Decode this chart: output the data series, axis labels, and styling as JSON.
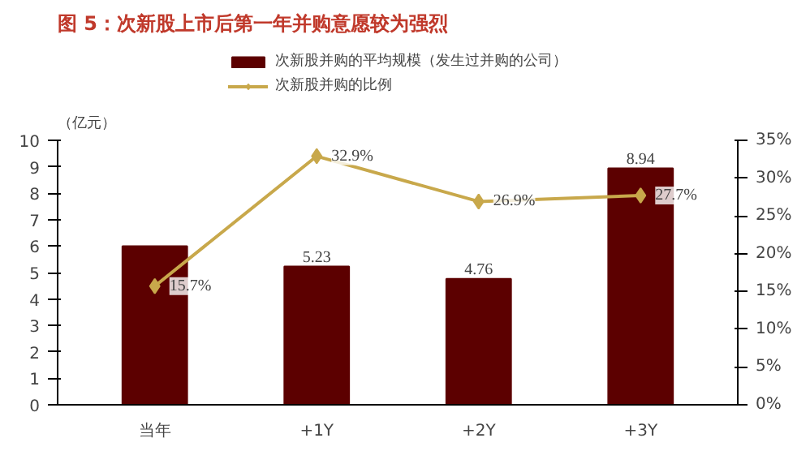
{
  "chart_data": {
    "type": "bar",
    "title": "图 5：次新股上市后第一年并购意愿较为强烈",
    "ylabel": "（亿元）",
    "categories": [
      "当年",
      "+1Y",
      "+2Y",
      "+3Y"
    ],
    "series": [
      {
        "name": "次新股并购的平均规模（发生过并购的公司）",
        "color": "#5c0000",
        "values": [
          6.0,
          5.23,
          4.76,
          8.94
        ],
        "value_labels": [
          null,
          "5.23",
          "4.76",
          "8.94"
        ]
      },
      {
        "name": "次新股并购的比例",
        "type": "line",
        "axis": "y2",
        "color": "#c8a84b",
        "marker": "diamond",
        "values": [
          15.7,
          32.9,
          26.9,
          27.7
        ],
        "value_labels": [
          "15.7%",
          "32.9%",
          "26.9%",
          "27.7%"
        ]
      }
    ],
    "ylim": [
      0,
      10
    ],
    "yticks": [
      0,
      1,
      2,
      3,
      4,
      5,
      6,
      7,
      8,
      9,
      10
    ],
    "y2lim": [
      0,
      35
    ],
    "y2ticks": [
      {
        "value": 0,
        "label": "0%"
      },
      {
        "value": 5,
        "label": "5%"
      },
      {
        "value": 10,
        "label": "10%"
      },
      {
        "value": 15,
        "label": "15%"
      },
      {
        "value": 20,
        "label": "20%"
      },
      {
        "value": 25,
        "label": "25%"
      },
      {
        "value": 30,
        "label": "30%"
      },
      {
        "value": 35,
        "label": "35%"
      }
    ],
    "grid": false,
    "legend": "top"
  }
}
